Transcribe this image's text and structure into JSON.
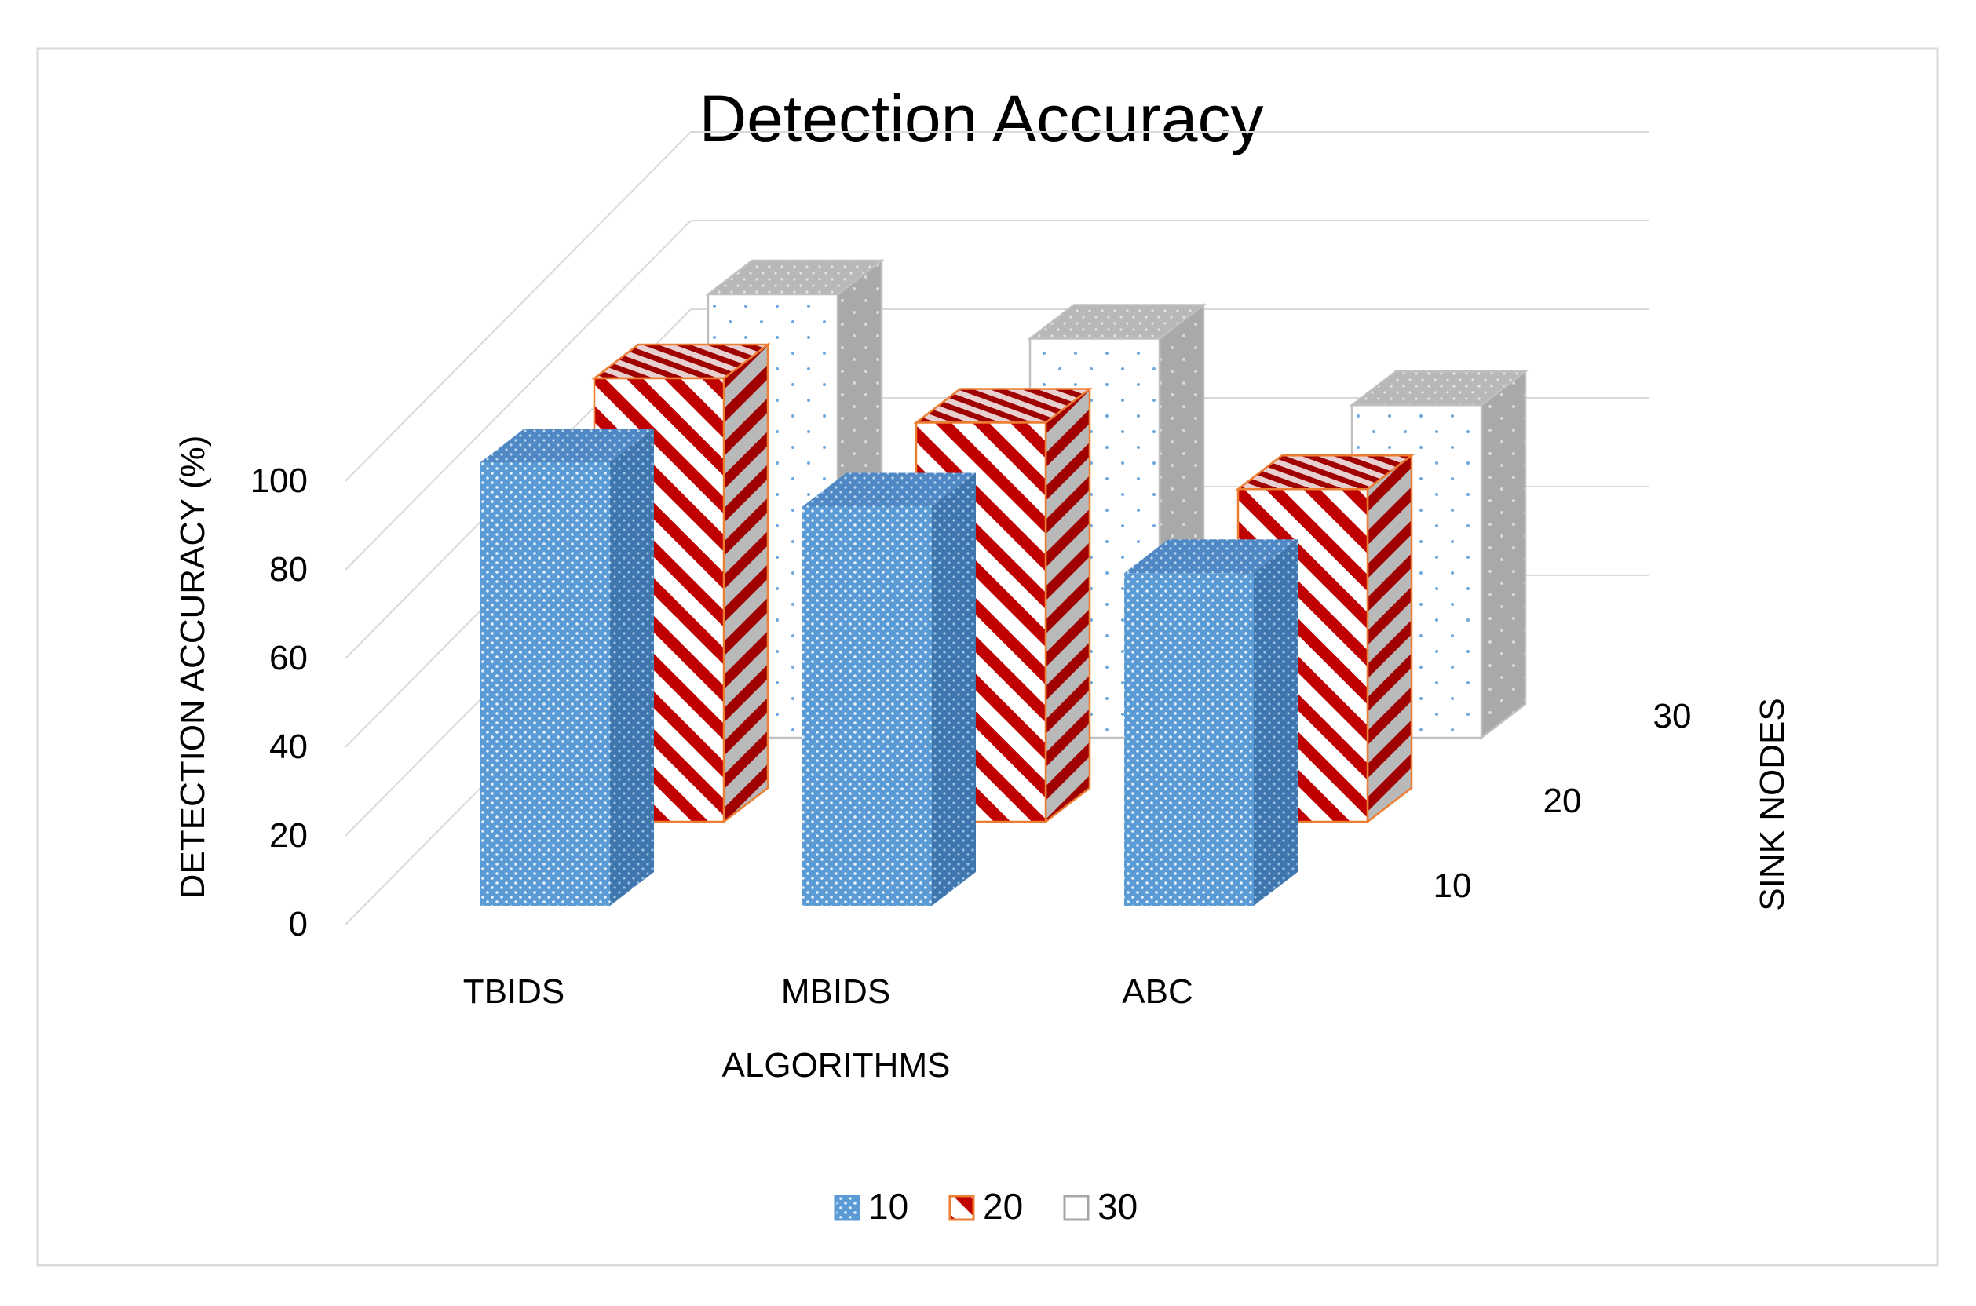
{
  "chart_data": {
    "type": "bar",
    "title": "Detection Accuracy",
    "xlabel": "ALGORITHMS",
    "ylabel": "DETECTION ACCURACY (%)",
    "zlabel": "SINK NODES",
    "categories": [
      "TBIDS",
      "MBIDS",
      "ABC"
    ],
    "yticks": [
      0,
      20,
      40,
      60,
      80,
      100
    ],
    "ylim": [
      0,
      100
    ],
    "grid": true,
    "legend_position": "bottom",
    "series": [
      {
        "name": "10",
        "values": [
          100,
          90,
          75
        ],
        "color": "#5b9bd5",
        "pattern": "dots"
      },
      {
        "name": "20",
        "values": [
          100,
          90,
          75
        ],
        "color": "#c00000",
        "pattern": "diagonal-stripes"
      },
      {
        "name": "30",
        "values": [
          100,
          90,
          75
        ],
        "color": "#ffffff",
        "pattern": "sparse-dots"
      }
    ]
  }
}
